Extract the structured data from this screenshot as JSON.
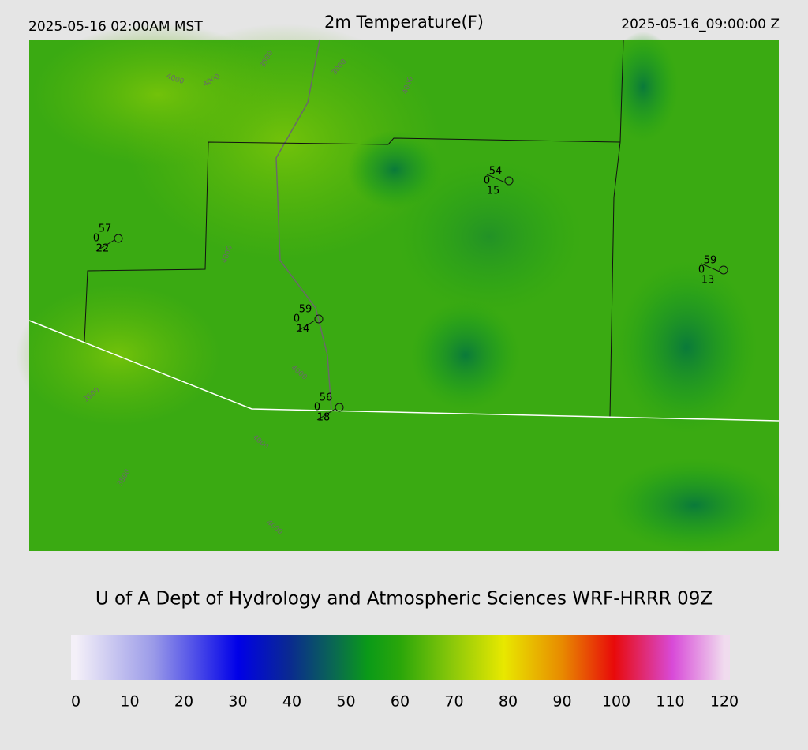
{
  "header": {
    "local_time": "2025-05-16 02:00AM MST",
    "title": "2m Temperature(F)",
    "valid_time": "2025-05-16_09:00:00 Z"
  },
  "stations": [
    {
      "temperature": "57",
      "left": "0",
      "bottom": "22"
    },
    {
      "temperature": "54",
      "left": "0",
      "bottom": "15"
    },
    {
      "temperature": "59",
      "left": "0",
      "bottom": "13"
    },
    {
      "temperature": "59",
      "left": "0",
      "bottom": "14"
    },
    {
      "temperature": "56",
      "left": "0",
      "bottom": "18"
    }
  ],
  "contour_labels": [
    "4000",
    "4000",
    "3500",
    "3000",
    "4000",
    "4000",
    "4000",
    "3500",
    "4000",
    "3500",
    "4000"
  ],
  "credit": "U of A Dept of Hydrology and Atmospheric Sciences WRF-HRRR 09Z",
  "colorbar": {
    "range": [
      0,
      120
    ],
    "ticks": [
      0,
      10,
      20,
      30,
      40,
      50,
      60,
      70,
      80,
      90,
      100,
      110,
      120
    ]
  }
}
